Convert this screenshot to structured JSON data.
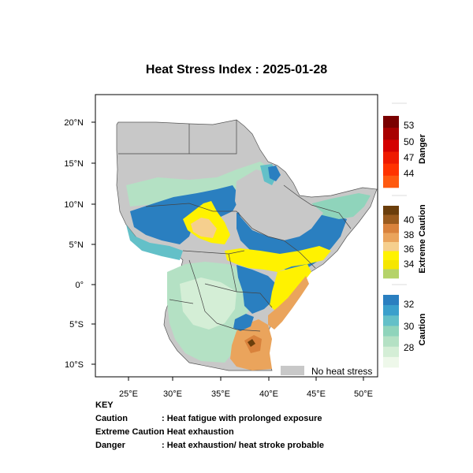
{
  "title": "Heat Stress Index : 2025-01-28",
  "map": {
    "lon_labels": [
      "25°E",
      "30°E",
      "35°E",
      "40°E",
      "45°E",
      "50°E"
    ],
    "lat_labels": [
      "20°N",
      "15°N",
      "10°N",
      "5°N",
      "0°",
      "5°S",
      "10°S"
    ],
    "no_heat_label": "No heat stress",
    "colors": {
      "no_heat": "#c8c8c8",
      "land_outline": "#444444",
      "ocean": "#ffffff"
    }
  },
  "colorbars": {
    "danger": {
      "title": "Danger",
      "ticks": [
        "53",
        "50",
        "47",
        "44"
      ],
      "colors": [
        "#7a0000",
        "#a80000",
        "#d40000",
        "#ee1a00",
        "#ff3300",
        "#ff5a10"
      ]
    },
    "extreme": {
      "title": "Extreme Caution",
      "ticks": [
        "40",
        "38",
        "36",
        "34"
      ],
      "colors": [
        "#6b3e0c",
        "#9a5b1e",
        "#d9823c",
        "#eaa45c",
        "#f5cf8e",
        "#fff200",
        "#f5e600",
        "#b5d36a"
      ]
    },
    "caution": {
      "title": "Caution",
      "ticks": [
        "32",
        "30",
        "28"
      ],
      "colors": [
        "#2a7fc0",
        "#3aa0cc",
        "#63c0c8",
        "#8fd4bb",
        "#b4e1c4",
        "#d4eed6",
        "#eef8ea"
      ]
    }
  },
  "key": {
    "heading": "KEY",
    "rows": [
      {
        "term": "Caution",
        "desc": ": Heat fatigue with prolonged exposure"
      },
      {
        "term": "Extreme Caution",
        "desc": ": Heat exhaustion"
      },
      {
        "term": "Danger",
        "desc": ": Heat exhaustion/ heat stroke probable"
      }
    ]
  }
}
